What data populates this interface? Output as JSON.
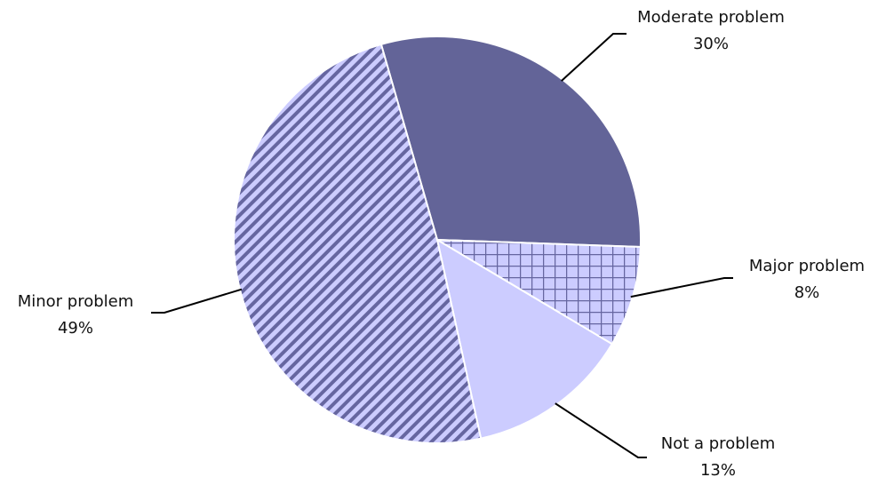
{
  "chart_data": {
    "type": "pie",
    "categories": [
      "Moderate problem",
      "Major problem",
      "Not a problem",
      "Minor problem"
    ],
    "values": [
      30,
      8,
      13,
      49
    ],
    "value_labels": [
      "30%",
      "8%",
      "13%",
      "49%"
    ],
    "colors": [
      "#636498",
      "#ccccff",
      "#ccccff",
      "#ccccff"
    ],
    "hatches": [
      "none",
      "grid",
      "none",
      "diagonal"
    ],
    "hatch_color": "#6666a0"
  }
}
